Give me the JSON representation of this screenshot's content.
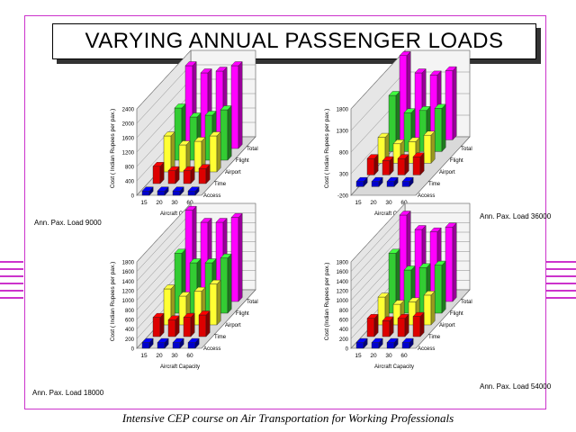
{
  "slide": {
    "title": "VARYING ANNUAL PASSENGER LOADS",
    "footer": "Intensive CEP course on Air Transportation for Working  Professionals"
  },
  "colors": {
    "frame": "#cc33cc",
    "Access": "#0000cc",
    "Time": "#dd0000",
    "Airport": "#ffff33",
    "Flight": "#33cc33",
    "Total": "#ff00ff"
  },
  "chart_data": [
    {
      "type": "bar3d",
      "label": "Ann. Pax. Load 9000",
      "ylabel": "Cost ( Indian Rupees per pax.)",
      "xlabel": "Aircraft Capacity",
      "categories": [
        "15",
        "20",
        "30",
        "60"
      ],
      "yticks": [
        "0",
        "400",
        "800",
        "1200",
        "1600",
        "2000",
        "2400"
      ],
      "ylim": [
        0,
        2400
      ],
      "series": [
        {
          "name": "Access",
          "values": [
            120,
            120,
            120,
            120
          ]
        },
        {
          "name": "Time",
          "values": [
            480,
            360,
            360,
            420
          ]
        },
        {
          "name": "Airport",
          "values": [
            1000,
            750,
            850,
            1000
          ]
        },
        {
          "name": "Flight",
          "values": [
            1450,
            1200,
            1250,
            1400
          ]
        },
        {
          "name": "Total",
          "values": [
            2300,
            2100,
            2150,
            2300
          ]
        }
      ]
    },
    {
      "type": "bar3d",
      "label": "Ann. Pax. Load 36000",
      "ylabel": "Cost ( Indian Rupees per pax.)",
      "xlabel": "Aircraft Capacity",
      "categories": [
        "15",
        "20",
        "30",
        "60"
      ],
      "yticks": [
        "-200",
        "300",
        "800",
        "1300",
        "1800"
      ],
      "ylim": [
        -200,
        1800
      ],
      "series": [
        {
          "name": "Access",
          "values": [
            120,
            120,
            120,
            120
          ]
        },
        {
          "name": "Time",
          "values": [
            380,
            330,
            380,
            420
          ]
        },
        {
          "name": "Airport",
          "values": [
            600,
            450,
            500,
            650
          ]
        },
        {
          "name": "Flight",
          "values": [
            1300,
            900,
            950,
            1000
          ]
        },
        {
          "name": "Total",
          "values": [
            1950,
            1550,
            1500,
            1600
          ]
        }
      ]
    },
    {
      "type": "bar3d",
      "label": "Ann. Pax. Load 18000",
      "ylabel": "Cost ( Indian Rupees per pax.)",
      "xlabel": "Aircraft Capacity",
      "categories": [
        "15",
        "20",
        "30",
        "60"
      ],
      "yticks": [
        "0",
        "200",
        "400",
        "600",
        "800",
        "1000",
        "1200",
        "1400",
        "1600",
        "1800"
      ],
      "ylim": [
        0,
        1800
      ],
      "series": [
        {
          "name": "Access",
          "values": [
            120,
            120,
            120,
            120
          ]
        },
        {
          "name": "Time",
          "values": [
            400,
            350,
            400,
            450
          ]
        },
        {
          "name": "Airport",
          "values": [
            750,
            600,
            700,
            850
          ]
        },
        {
          "name": "Flight",
          "values": [
            1250,
            1050,
            1050,
            1150
          ]
        },
        {
          "name": "Total",
          "values": [
            1900,
            1650,
            1650,
            1750
          ]
        }
      ]
    },
    {
      "type": "bar3d",
      "label": "Ann. Pax. Load 54000",
      "ylabel": "Cost (Indian Rupees per pax.)",
      "xlabel": "Aircraft Capacity",
      "categories": [
        "15",
        "20",
        "30",
        "60"
      ],
      "yticks": [
        "0",
        "200",
        "400",
        "600",
        "800",
        "1000",
        "1200",
        "1400",
        "1600",
        "1800"
      ],
      "ylim": [
        0,
        1800
      ],
      "series": [
        {
          "name": "Access",
          "values": [
            120,
            120,
            120,
            120
          ]
        },
        {
          "name": "Time",
          "values": [
            380,
            330,
            380,
            420
          ]
        },
        {
          "name": "Airport",
          "values": [
            580,
            430,
            480,
            620
          ]
        },
        {
          "name": "Flight",
          "values": [
            1250,
            900,
            950,
            1000
          ]
        },
        {
          "name": "Total",
          "values": [
            1800,
            1500,
            1450,
            1550
          ]
        }
      ]
    }
  ]
}
